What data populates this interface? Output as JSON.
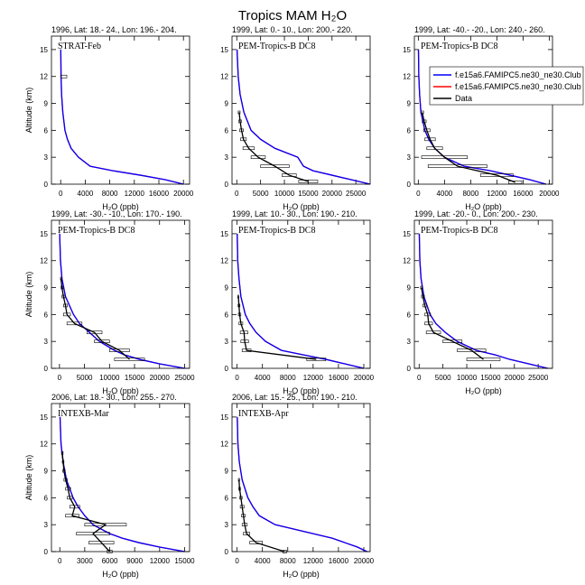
{
  "title": "Tropics MAM H₂O",
  "chart_data": [
    {
      "type": "line",
      "header": "1996, Lat: 18.- 24., Lon: 196.- 204.",
      "label": "STRAT-Feb",
      "y_label": "Altitude (km)",
      "x_label": "H₂O (ppb)",
      "xlim": [
        -1500,
        21000
      ],
      "xticks": [
        0,
        4000,
        8000,
        12000,
        16000,
        20000
      ],
      "ylim": [
        0,
        16.5
      ],
      "yticks": [
        0,
        3,
        6,
        9,
        12,
        15
      ],
      "altitude": [
        0,
        0.5,
        1,
        1.5,
        2,
        3,
        4,
        5,
        6,
        8,
        10,
        12,
        15
      ],
      "series": [
        {
          "color": "#0000ff",
          "values": [
            20000,
            17000,
            13000,
            8500,
            4800,
            2900,
            1700,
            1100,
            700,
            350,
            150,
            60,
            20
          ]
        },
        {
          "color": "#ff0000",
          "values": [
            20000,
            17000,
            13000,
            8500,
            4800,
            2900,
            1700,
            1100,
            700,
            350,
            150,
            60,
            20
          ]
        }
      ],
      "observations": {
        "color": "#000000",
        "altitude": [
          12
        ],
        "values": [
          500
        ],
        "errors": [
          500
        ]
      }
    },
    {
      "type": "line",
      "header": "1999, Lat: 0.- 10., Lon: 200.- 220.",
      "label": "PEM-Tropics-B DC8",
      "x_label": "H₂O (ppb)",
      "xlim": [
        -1000,
        28000
      ],
      "xticks": [
        0,
        5000,
        10000,
        15000,
        20000,
        25000
      ],
      "ylim": [
        0,
        16.5
      ],
      "yticks": [
        0,
        3,
        6,
        9,
        12,
        15
      ],
      "altitude": [
        0,
        0.5,
        1,
        1.5,
        2,
        3,
        4,
        5,
        6,
        8,
        10,
        12,
        15
      ],
      "series": [
        {
          "color": "#0000ff",
          "values": [
            28000,
            24000,
            20000,
            16000,
            14000,
            12800,
            8000,
            5000,
            3000,
            1500,
            700,
            300,
            50
          ]
        },
        {
          "color": "#ff0000",
          "values": [
            28000,
            24000,
            20000,
            16000,
            14000,
            12800,
            8000,
            5000,
            3000,
            1500,
            700,
            300,
            50
          ]
        }
      ],
      "observations": {
        "color": "#000000",
        "altitude": [
          0.3,
          1,
          2,
          3,
          4,
          5,
          6,
          7,
          8
        ],
        "values": [
          15000,
          11000,
          8000,
          4500,
          2500,
          1400,
          1000,
          700,
          500
        ],
        "errors": [
          2000,
          1500,
          3000,
          1500,
          1200,
          600,
          400,
          300,
          200
        ]
      }
    },
    {
      "type": "line",
      "header": "1999, Lat: -40.- -20., Lon: 240.- 260.",
      "label": "PEM-Tropics-B DC8",
      "x_label": "H₂O (ppb)",
      "xlim": [
        -600,
        20500
      ],
      "xticks": [
        0,
        4000,
        8000,
        12000,
        16000,
        20000
      ],
      "ylim": [
        0,
        16.5
      ],
      "yticks": [
        0,
        3,
        6,
        9,
        12,
        15
      ],
      "legend": "top-right",
      "altitude": [
        0,
        0.5,
        1,
        1.5,
        2,
        3,
        4,
        5,
        6,
        8,
        10,
        12,
        15
      ],
      "series": [
        {
          "name": "f.e15a6.FAMIPC5.ne30_ne30.Club",
          "color": "#0000ff",
          "values": [
            19500,
            17000,
            14000,
            11000,
            7000,
            4000,
            2500,
            1600,
            1000,
            400,
            200,
            80,
            20
          ]
        },
        {
          "name": "f.e15a6.FAMIPC5.ne30_ne30.Club",
          "color": "#ff0000",
          "values": [
            19500,
            17000,
            14000,
            11000,
            7000,
            4000,
            2500,
            1600,
            1000,
            400,
            200,
            80,
            20
          ]
        }
      ],
      "observations": {
        "name": "Data",
        "color": "#000000",
        "altitude": [
          0.2,
          1,
          2,
          3,
          4,
          5,
          6,
          7,
          8
        ],
        "values": [
          14800,
          12000,
          6000,
          4000,
          2500,
          1800,
          1300,
          900,
          600
        ],
        "errors": [
          1000,
          2500,
          4500,
          3500,
          1200,
          800,
          500,
          300,
          200
        ]
      }
    },
    {
      "type": "line",
      "header": "1999, Lat: -30.- -10., Lon: 170.- 190.",
      "label": "PEM-Tropics-B DC8",
      "y_label": "Altitude (km)",
      "x_label": "H₂O (ppb)",
      "xlim": [
        -1600,
        26000
      ],
      "xticks": [
        0,
        5000,
        10000,
        15000,
        20000,
        25000
      ],
      "ylim": [
        0,
        16.5
      ],
      "yticks": [
        0,
        3,
        6,
        9,
        12,
        15
      ],
      "altitude": [
        0,
        0.5,
        1,
        1.5,
        2,
        3,
        4,
        5,
        6,
        8,
        10,
        12,
        15
      ],
      "series": [
        {
          "color": "#0000ff",
          "values": [
            25000,
            20000,
            16000,
            13000,
            11000,
            8000,
            6000,
            4000,
            2800,
            1200,
            500,
            200,
            40
          ]
        },
        {
          "color": "#ff0000",
          "values": [
            25000,
            20000,
            16000,
            13000,
            11000,
            8000,
            6000,
            4000,
            2800,
            1200,
            500,
            200,
            40
          ]
        }
      ],
      "observations": {
        "color": "#000000",
        "altitude": [
          1,
          2,
          3,
          4,
          5,
          6,
          7,
          8,
          9,
          10
        ],
        "values": [
          14000,
          12000,
          8500,
          7000,
          3000,
          1500,
          1200,
          800,
          500,
          300
        ],
        "errors": [
          3000,
          2000,
          1500,
          1500,
          1500,
          700,
          400,
          300,
          200,
          100
        ]
      }
    },
    {
      "type": "line",
      "header": "1999, Lat: 10.- 30., Lon: 190.- 210.",
      "label": "PEM-Tropics-B DC8",
      "x_label": "H₂O (ppb)",
      "xlim": [
        -800,
        21000
      ],
      "xticks": [
        0,
        4000,
        8000,
        12000,
        16000,
        20000
      ],
      "ylim": [
        0,
        16.5
      ],
      "yticks": [
        0,
        3,
        6,
        9,
        12,
        15
      ],
      "altitude": [
        0,
        0.5,
        1,
        1.5,
        2,
        3,
        4,
        5,
        6,
        8,
        10,
        12,
        15
      ],
      "series": [
        {
          "color": "#0000ff",
          "values": [
            20000,
            17000,
            14000,
            10500,
            7000,
            4500,
            3000,
            2000,
            1300,
            600,
            300,
            100,
            20
          ]
        },
        {
          "color": "#ff0000",
          "values": [
            20000,
            17000,
            14000,
            10500,
            7000,
            4500,
            3000,
            2000,
            1300,
            600,
            300,
            100,
            20
          ]
        }
      ],
      "observations": {
        "color": "#000000",
        "altitude": [
          1,
          2,
          3,
          4,
          5,
          6,
          7,
          8
        ],
        "values": [
          12500,
          1500,
          1200,
          1100,
          600,
          400,
          300,
          200
        ],
        "errors": [
          1500,
          700,
          600,
          600,
          300,
          200,
          150,
          100
        ]
      }
    },
    {
      "type": "line",
      "header": "1999, Lat: -20.- 0., Lon: 200.- 230.",
      "label": "PEM-Tropics-B DC8",
      "x_label": "H₂O (ppb)",
      "xlim": [
        -1000,
        28000
      ],
      "xticks": [
        0,
        5000,
        10000,
        15000,
        20000,
        25000
      ],
      "ylim": [
        0,
        16.5
      ],
      "yticks": [
        0,
        3,
        6,
        9,
        12,
        15
      ],
      "altitude": [
        0,
        0.5,
        1,
        1.5,
        2,
        3,
        4,
        5,
        6,
        8,
        10,
        12,
        15
      ],
      "series": [
        {
          "color": "#0000ff",
          "values": [
            27000,
            23000,
            19000,
            16000,
            12000,
            8000,
            5500,
            3500,
            2300,
            1000,
            400,
            150,
            30
          ]
        },
        {
          "color": "#ff0000",
          "values": [
            27000,
            23000,
            19000,
            16000,
            12000,
            8000,
            5500,
            3500,
            2300,
            1000,
            400,
            150,
            30
          ]
        }
      ],
      "observations": {
        "color": "#000000",
        "altitude": [
          1,
          2,
          3,
          4,
          5,
          6,
          7,
          8,
          9
        ],
        "values": [
          13500,
          11000,
          7000,
          3000,
          2000,
          1800,
          1200,
          800,
          500
        ],
        "errors": [
          3500,
          3000,
          2000,
          1500,
          800,
          600,
          400,
          300,
          200
        ]
      }
    },
    {
      "type": "line",
      "header": "2006, Lat: 18.- 30., Lon: 255.- 270.",
      "label": "INTEXB-Mar",
      "y_label": "Altitude (km)",
      "x_label": "H₂O (ppb)",
      "xlim": [
        -1000,
        15600
      ],
      "xticks": [
        0,
        3000,
        6000,
        9000,
        12000,
        15000
      ],
      "ylim": [
        0,
        16.5
      ],
      "yticks": [
        0,
        3,
        6,
        9,
        12,
        15
      ],
      "altitude": [
        0,
        0.5,
        1,
        1.5,
        2,
        3,
        4,
        5,
        6,
        8,
        10,
        12,
        15
      ],
      "series": [
        {
          "color": "#0000ff",
          "values": [
            15000,
            12000,
            9500,
            7500,
            6000,
            4000,
            3000,
            2200,
            1600,
            800,
            400,
            150,
            30
          ]
        },
        {
          "color": "#ff0000",
          "values": [
            15000,
            12000,
            9500,
            7500,
            6000,
            4000,
            3000,
            2200,
            1600,
            800,
            400,
            150,
            30
          ]
        }
      ],
      "observations": {
        "color": "#000000",
        "altitude": [
          0,
          1,
          2,
          3,
          4,
          5,
          6,
          7,
          8,
          9,
          10,
          11
        ],
        "values": [
          6000,
          5000,
          4000,
          5500,
          1500,
          1800,
          1200,
          1000,
          700,
          500,
          400,
          300
        ],
        "errors": [
          300,
          1500,
          2000,
          2500,
          800,
          600,
          300,
          300,
          200,
          150,
          100,
          100
        ]
      }
    },
    {
      "type": "line",
      "header": "2006, Lat: 15.- 25., Lon: 190.- 210.",
      "label": "INTEXB-Apr",
      "x_label": "H₂O (ppb)",
      "xlim": [
        -800,
        21000
      ],
      "xticks": [
        0,
        4000,
        8000,
        12000,
        16000,
        20000
      ],
      "ylim": [
        0,
        16.5
      ],
      "yticks": [
        0,
        3,
        6,
        9,
        12,
        15
      ],
      "altitude": [
        0,
        0.5,
        1,
        1.5,
        2,
        3,
        4,
        5,
        6,
        8,
        10,
        12,
        15
      ],
      "series": [
        {
          "color": "#0000ff",
          "values": [
            20500,
            19000,
            17000,
            15000,
            12000,
            6000,
            3500,
            2500,
            1700,
            800,
            350,
            130,
            30
          ]
        },
        {
          "color": "#ff0000",
          "values": [
            20500,
            19000,
            17000,
            15000,
            12000,
            6000,
            3500,
            2500,
            1700,
            800,
            350,
            130,
            30
          ]
        }
      ],
      "observations": {
        "color": "#000000",
        "altitude": [
          0,
          1,
          2,
          3,
          4,
          5,
          6,
          7,
          8
        ],
        "values": [
          7500,
          3000,
          1500,
          1200,
          1000,
          800,
          600,
          400,
          300
        ],
        "errors": [
          300,
          1000,
          500,
          400,
          300,
          300,
          200,
          150,
          100
        ]
      }
    }
  ]
}
